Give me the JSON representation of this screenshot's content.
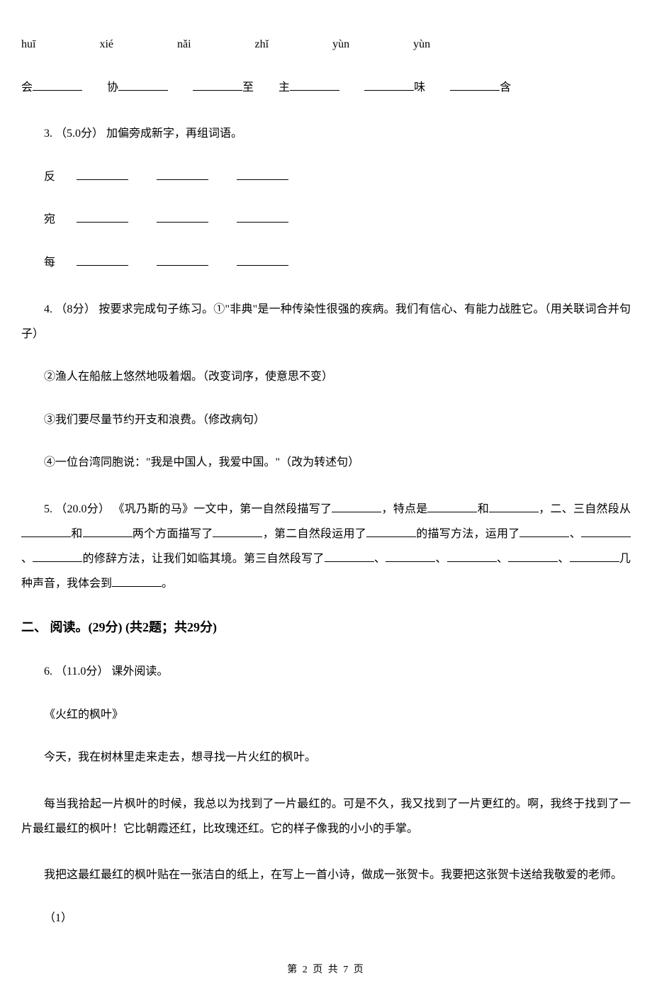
{
  "pinyin": {
    "p1": "huī",
    "p2": "xié",
    "p3": "nǎi",
    "p4": "zhǐ",
    "p5": "yùn",
    "p6": "yùn"
  },
  "chars": {
    "c1": "会",
    "c2": "协",
    "c3": "至",
    "c4": "主",
    "c5": "味",
    "c6": "含"
  },
  "q3": {
    "label": "3. （5.0分） 加偏旁成新字，再组词语。",
    "r1": "反",
    "r2": "宛",
    "r3": "每"
  },
  "q4": {
    "label": "4. （8分） 按要求完成句子练习。①\"非典\"是一种传染性很强的疾病。我们有信心、有能力战胜它。（用关联词合并句子）",
    "s2": "②渔人在船舷上悠然地吸着烟。（改变词序，使意思不变）",
    "s3": "③我们要尽量节约开支和浪费。（修改病句）",
    "s4": "④一位台湾同胞说：\"我是中国人，我爱中国。\"（改为转述句）"
  },
  "q5": {
    "t1": "5. （20.0分） 《巩乃斯的马》一文中，第一自然段描写了",
    "t2": "，特点是",
    "t3": "和",
    "t4": "，二、三自然段从",
    "t5": "和",
    "t6": "两个方面描写了",
    "t7": "，第二自然段运用了",
    "t8": "的描写方法，运用了",
    "t9": "、",
    "t10": "、",
    "t11": "的修辞方法，让我们如临其境。第三自然段写了",
    "t12": "、",
    "t13": "、",
    "t14": "、",
    "t15": "、",
    "t16": "几种声音，我体会到",
    "t17": "。"
  },
  "section2": {
    "title": "二、 阅读。(29分)  (共2题；共29分)"
  },
  "q6": {
    "label": "6. （11.0分） 课外阅读。",
    "title": "《火红的枫叶》",
    "p1": "今天，我在树林里走来走去，想寻找一片火红的枫叶。",
    "p2": "每当我拾起一片枫叶的时候，我总以为找到了一片最红的。可是不久，我又找到了一片更红的。啊，我终于找到了一片最红最红的枫叶！它比朝霞还红，比玫瑰还红。它的样子像我的小小的手掌。",
    "p3": "我把这最红最红的枫叶贴在一张洁白的纸上，在写上一首小诗，做成一张贺卡。我要把这张贺卡送给我敬爱的老师。",
    "sub1": "（1）"
  },
  "footer": "第 2 页 共 7 页"
}
